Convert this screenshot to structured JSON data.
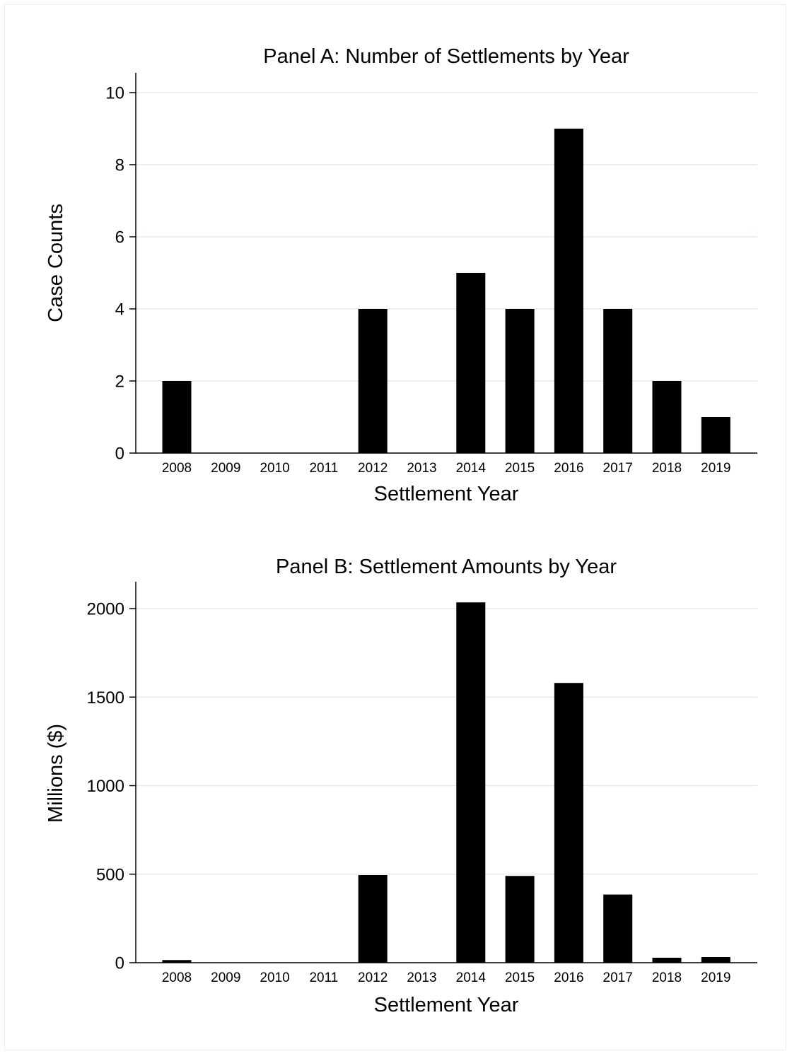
{
  "colors": {
    "bar": "#000000",
    "grid": "#e3ecec",
    "axis": "#000000",
    "background": "#ffffff"
  },
  "chart_data": [
    {
      "type": "bar",
      "title": "Panel A: Number of Settlements by Year",
      "xlabel": "Settlement Year",
      "ylabel": "Case Counts",
      "categories": [
        "2008",
        "2009",
        "2010",
        "2011",
        "2012",
        "2013",
        "2014",
        "2015",
        "2016",
        "2017",
        "2018",
        "2019"
      ],
      "values": [
        2,
        0,
        0,
        0,
        4,
        0,
        5,
        4,
        9,
        4,
        2,
        1
      ],
      "ylim": [
        0,
        10
      ],
      "yticks": [
        0,
        2,
        4,
        6,
        8,
        10
      ],
      "ytick_labels": [
        "0",
        "2",
        "4",
        "6",
        "8",
        "10"
      ],
      "grid": true
    },
    {
      "type": "bar",
      "title": "Panel B: Settlement Amounts by Year",
      "xlabel": "Settlement Year",
      "ylabel": "Millions ($)",
      "categories": [
        "2008",
        "2009",
        "2010",
        "2011",
        "2012",
        "2013",
        "2014",
        "2015",
        "2016",
        "2017",
        "2018",
        "2019"
      ],
      "values": [
        15,
        0,
        0,
        0,
        495,
        0,
        2035,
        490,
        1580,
        385,
        28,
        32
      ],
      "ylim": [
        0,
        2000
      ],
      "yticks": [
        0,
        500,
        1000,
        1500,
        2000
      ],
      "ytick_labels": [
        "0",
        "500",
        "1000",
        "1500",
        "2000"
      ],
      "grid": true
    }
  ]
}
